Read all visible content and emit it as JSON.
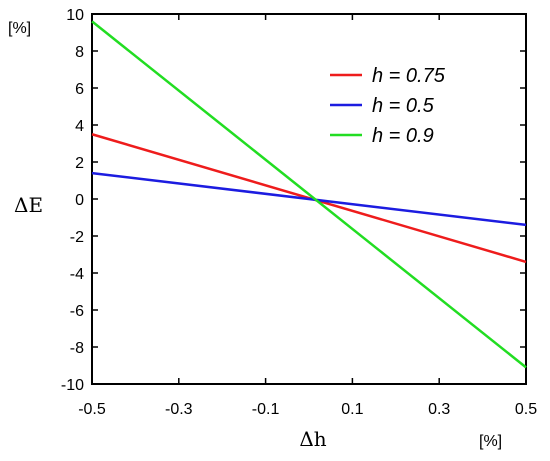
{
  "chart_data": {
    "type": "line",
    "xlabel": "Δh",
    "ylabel": "ΔE",
    "x_unit": "[%]",
    "y_unit": "[%]",
    "xlim": [
      -0.5,
      0.5
    ],
    "ylim": [
      -10,
      10
    ],
    "x_ticks": [
      "-0.5",
      "-0.3",
      "-0.1",
      "0.1",
      "0.3",
      "0.5"
    ],
    "y_ticks": [
      "10",
      "8",
      "6",
      "4",
      "2",
      "0",
      "-2",
      "-4",
      "-6",
      "-8",
      "-10"
    ],
    "x_tick_values": [
      -0.5,
      -0.3,
      -0.1,
      0.1,
      0.3,
      0.5
    ],
    "y_tick_values": [
      10,
      8,
      6,
      4,
      2,
      0,
      -2,
      -4,
      -6,
      -8,
      -10
    ],
    "grid": false,
    "legend_position": "top-right",
    "series": [
      {
        "name": "h = 0.75",
        "color": "#ee1c1c",
        "x": [
          -0.5,
          0.5
        ],
        "y": [
          3.5,
          -3.4
        ]
      },
      {
        "name": "h = 0.5",
        "color": "#1c1ce0",
        "x": [
          -0.5,
          0.5
        ],
        "y": [
          1.4,
          -1.4
        ]
      },
      {
        "name": "h = 0.9",
        "color": "#22dd22",
        "x": [
          -0.5,
          0.5
        ],
        "y": [
          9.6,
          -9.1
        ]
      }
    ]
  }
}
